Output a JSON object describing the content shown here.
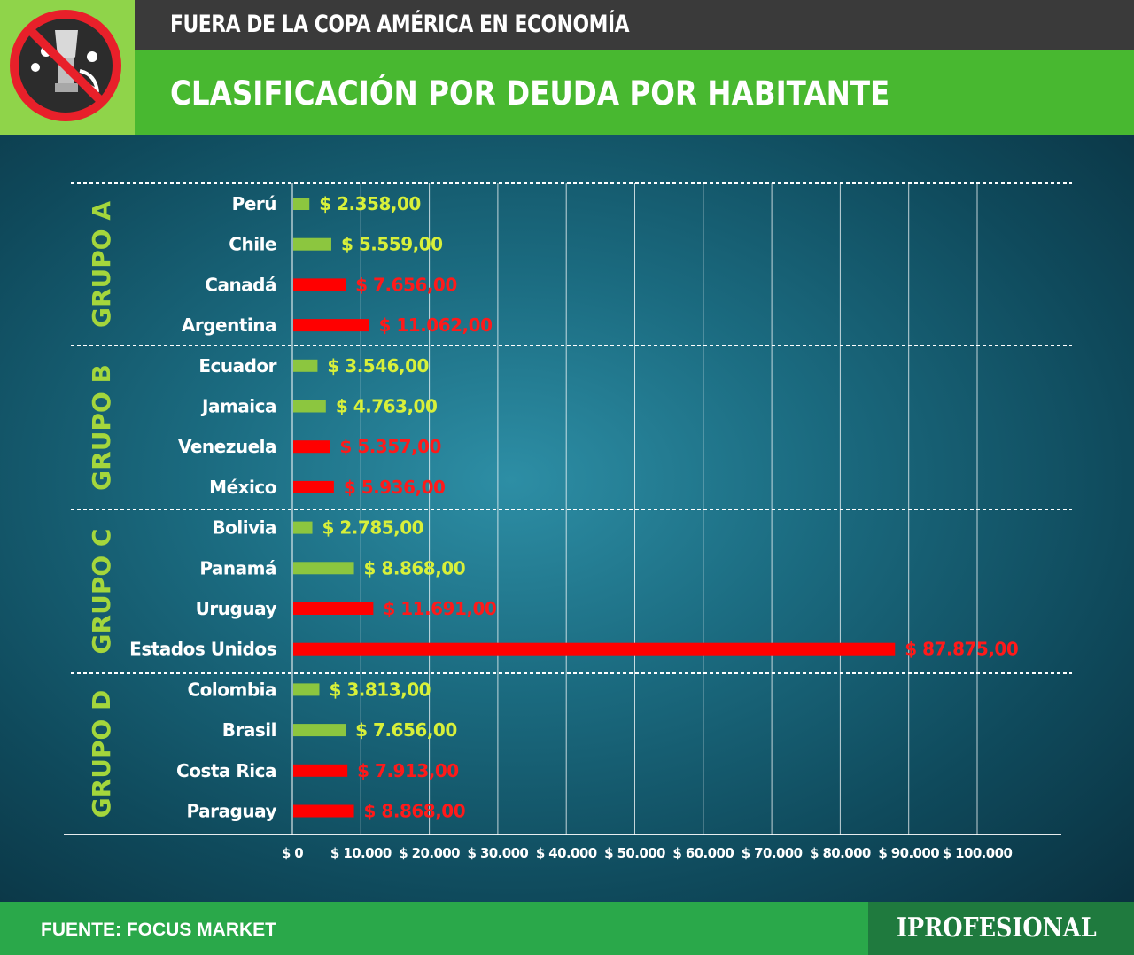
{
  "header": {
    "top_title": "FUERA DE LA COPA AMÉRICA EN ECONOMÍA",
    "main_title": "CLASIFICACIÓN POR DEUDA POR HABITANTE"
  },
  "footer": {
    "source": "FUENTE: FOCUS MARKET",
    "brand": "IPROFESIONAL"
  },
  "colors": {
    "green_bar": "#8cc63f",
    "red_bar": "#ff0000",
    "green_label": "#d8f03a",
    "red_label": "#ff1a1a",
    "group_label": "#a4d63c"
  },
  "chart_data": {
    "type": "bar",
    "orientation": "horizontal",
    "xlim": [
      0,
      100000
    ],
    "x_ticks": [
      "$ 0",
      "$ 10.000",
      "$ 20.000",
      "$ 30.000",
      "$ 40.000",
      "$ 50.000",
      "$ 60.000",
      "$ 70.000",
      "$ 80.000",
      "$ 90.000",
      "$ 100.000"
    ],
    "groups": [
      {
        "name": "GRUPO A",
        "items": [
          {
            "country": "Perú",
            "value": 2358,
            "label": "$ 2.358,00",
            "color": "green"
          },
          {
            "country": "Chile",
            "value": 5559,
            "label": "$ 5.559,00",
            "color": "green"
          },
          {
            "country": "Canadá",
            "value": 7656,
            "label": "$ 7.656,00",
            "color": "red"
          },
          {
            "country": "Argentina",
            "value": 11062,
            "label": "$ 11.062,00",
            "color": "red"
          }
        ]
      },
      {
        "name": "GRUPO B",
        "items": [
          {
            "country": "Ecuador",
            "value": 3546,
            "label": "$ 3.546,00",
            "color": "green"
          },
          {
            "country": "Jamaica",
            "value": 4763,
            "label": "$ 4.763,00",
            "color": "green"
          },
          {
            "country": "Venezuela",
            "value": 5357,
            "label": "$ 5.357,00",
            "color": "red"
          },
          {
            "country": "México",
            "value": 5936,
            "label": "$ 5.936,00",
            "color": "red"
          }
        ]
      },
      {
        "name": "GRUPO C",
        "items": [
          {
            "country": "Bolivia",
            "value": 2785,
            "label": "$ 2.785,00",
            "color": "green"
          },
          {
            "country": "Panamá",
            "value": 8868,
            "label": "$ 8.868,00",
            "color": "green"
          },
          {
            "country": "Uruguay",
            "value": 11691,
            "label": "$ 11.691,00",
            "color": "red"
          },
          {
            "country": "Estados Unidos",
            "value": 87875,
            "label": "$ 87.875,00",
            "color": "red"
          }
        ]
      },
      {
        "name": "GRUPO D",
        "items": [
          {
            "country": "Colombia",
            "value": 3813,
            "label": "$ 3.813,00",
            "color": "green"
          },
          {
            "country": "Brasil",
            "value": 7656,
            "label": "$ 7.656,00",
            "color": "green"
          },
          {
            "country": "Costa Rica",
            "value": 7913,
            "label": "$ 7.913,00",
            "color": "red"
          },
          {
            "country": "Paraguay",
            "value": 8868,
            "label": "$ 8.868,00",
            "color": "red"
          }
        ]
      }
    ]
  }
}
